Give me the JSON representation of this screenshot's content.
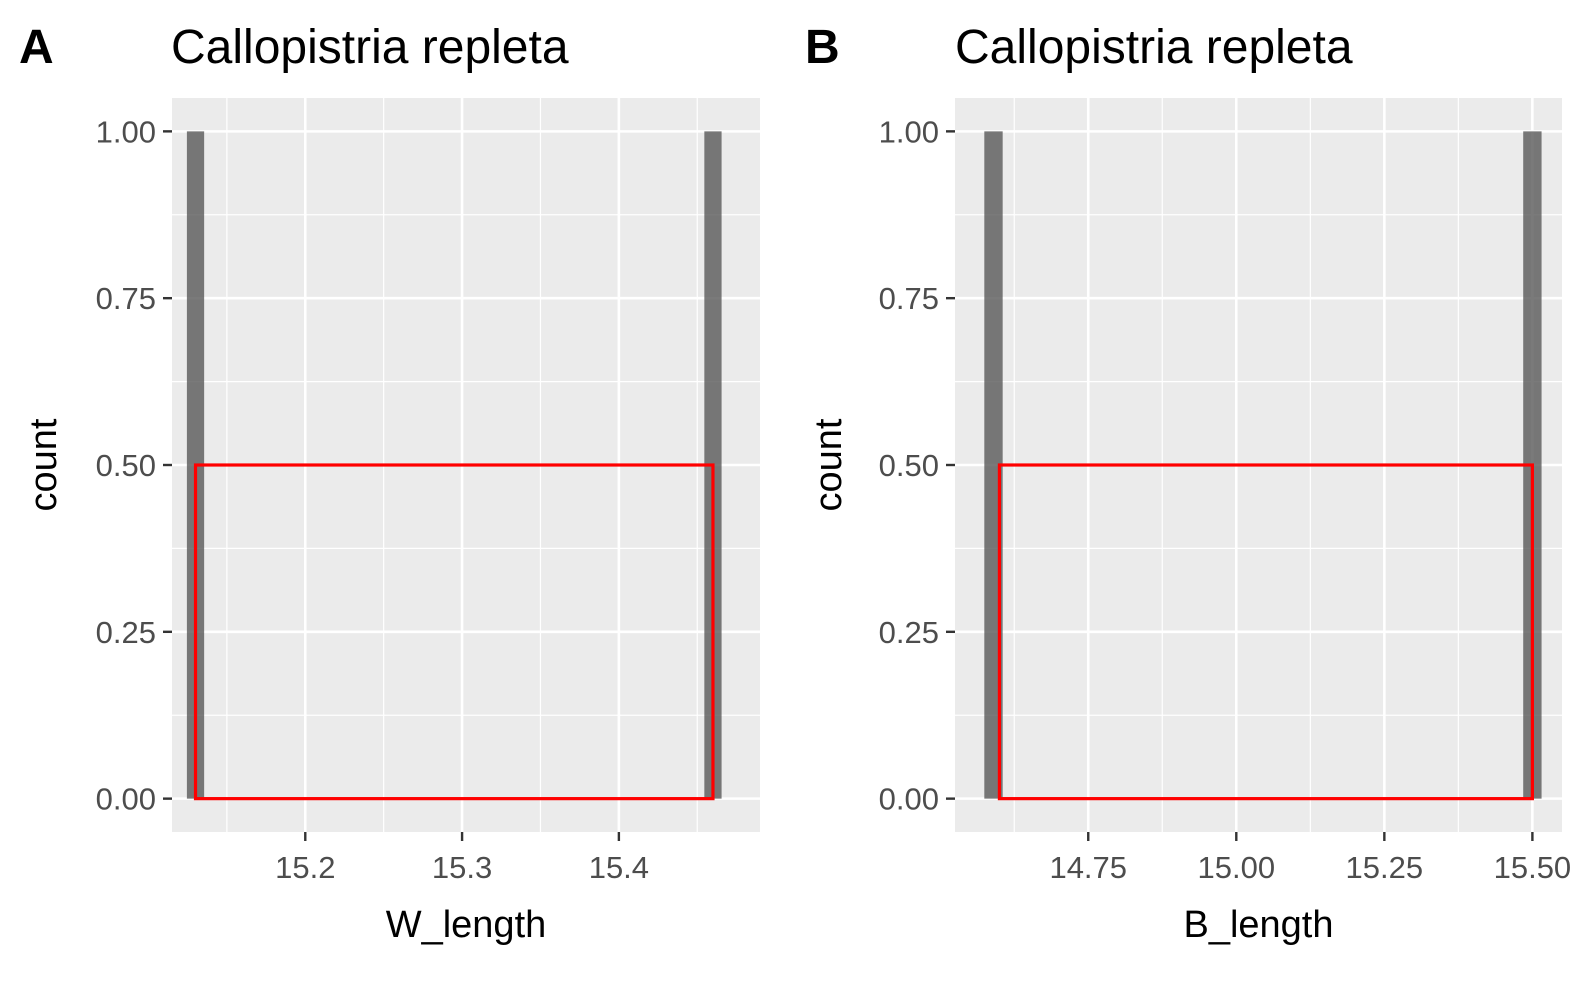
{
  "colors": {
    "panel_bg": "#ebebeb",
    "grid": "#ffffff",
    "bar": "#595959",
    "overlay": "#ff0000",
    "tick_text": "#4d4d4d"
  },
  "chart_data": [
    {
      "type": "bar",
      "panel_label": "A",
      "title": "Callopistria repleta",
      "xlabel": "W_length",
      "ylabel": "count",
      "xlim": [
        15.115,
        15.49
      ],
      "ylim": [
        -0.05,
        1.05
      ],
      "xticks": [
        15.2,
        15.3,
        15.4
      ],
      "xtick_labels": [
        "15.2",
        "15.3",
        "15.4"
      ],
      "yticks": [
        0,
        0.25,
        0.5,
        0.75,
        1
      ],
      "ytick_labels": [
        "0.00",
        "0.25",
        "0.50",
        "0.75",
        "1.00"
      ],
      "grid": true,
      "bar_width": 0.011,
      "bars": [
        {
          "x": 15.13,
          "count": 1
        },
        {
          "x": 15.46,
          "count": 1
        }
      ],
      "overlay_rect": {
        "x0": 15.13,
        "x1": 15.46,
        "y0": 0,
        "y1": 0.5
      }
    },
    {
      "type": "bar",
      "panel_label": "B",
      "title": "Callopistria repleta",
      "xlabel": "B_length",
      "ylabel": "count",
      "xlim": [
        14.525,
        15.55
      ],
      "ylim": [
        -0.05,
        1.05
      ],
      "xticks": [
        14.75,
        15.0,
        15.25,
        15.5
      ],
      "xtick_labels": [
        "14.75",
        "15.00",
        "15.25",
        "15.50"
      ],
      "yticks": [
        0,
        0.25,
        0.5,
        0.75,
        1
      ],
      "ytick_labels": [
        "0.00",
        "0.25",
        "0.50",
        "0.75",
        "1.00"
      ],
      "grid": true,
      "bar_width": 0.031,
      "bars": [
        {
          "x": 14.59,
          "count": 1
        },
        {
          "x": 15.5,
          "count": 1
        }
      ],
      "overlay_rect": {
        "x0": 14.6,
        "x1": 15.5,
        "y0": 0,
        "y1": 0.5
      }
    }
  ]
}
